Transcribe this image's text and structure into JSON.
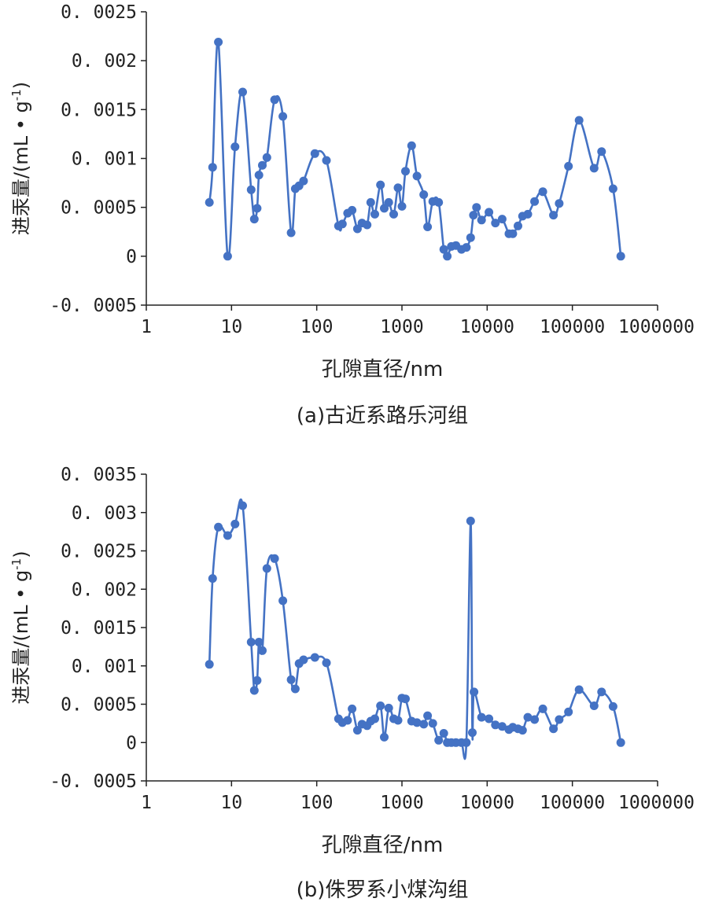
{
  "chart_data": [
    {
      "type": "line",
      "xlabel": "孔隙直径/nm",
      "ylabel": "进汞量/(mL • g",
      "ylabel_sup": "-1",
      "ylabel_close": ")",
      "caption": "(a)古近系路乐河组",
      "xscale": "log",
      "xlim": [
        1,
        1000000
      ],
      "ylim": [
        -0.0005,
        0.0025
      ],
      "xticks": [
        "1",
        "10",
        "100",
        "1000",
        "10000",
        "100000",
        "1000000"
      ],
      "yticks": [
        "0.0025",
        "0.002",
        "0.0015",
        "0.001",
        "0.0005",
        "0",
        "-0.0005"
      ],
      "color": "#4472C4",
      "x": [
        5.5,
        6,
        7,
        9,
        11,
        13.5,
        17,
        18.5,
        20,
        21,
        23,
        26,
        32,
        40,
        50,
        56,
        62,
        70,
        95,
        130,
        180,
        200,
        230,
        260,
        300,
        340,
        390,
        430,
        480,
        560,
        620,
        700,
        800,
        900,
        1000,
        1100,
        1300,
        1500,
        1800,
        2000,
        2300,
        2700,
        3100,
        3400,
        3800,
        4300,
        5000,
        5700,
        6400,
        6900,
        7500,
        8600,
        10500,
        12500,
        15000,
        18000,
        20000,
        23000,
        26000,
        30000,
        36000,
        45000,
        60000,
        70000,
        90000,
        120000,
        180000,
        220000,
        300000,
        370000
      ],
      "y": [
        0.00055,
        0.00091,
        0.00219,
        0.0,
        0.00112,
        0.00168,
        0.00068,
        0.00038,
        0.00049,
        0.00083,
        0.00093,
        0.00101,
        0.0016,
        0.00143,
        0.00024,
        0.00069,
        0.00072,
        0.00077,
        0.00105,
        0.00098,
        0.00031,
        0.00033,
        0.00044,
        0.00047,
        0.00028,
        0.00034,
        0.00032,
        0.00055,
        0.00043,
        0.00073,
        0.00049,
        0.00055,
        0.00043,
        0.0007,
        0.00051,
        0.00087,
        0.00113,
        0.00082,
        0.00063,
        0.0003,
        0.00056,
        0.00055,
        7e-05,
        0.0,
        0.0001,
        0.00011,
        7e-05,
        9e-05,
        0.00019,
        0.00042,
        0.0005,
        0.00037,
        0.00045,
        0.00034,
        0.00038,
        0.00023,
        0.00023,
        0.00031,
        0.00041,
        0.00043,
        0.00056,
        0.00066,
        0.00042,
        0.00054,
        0.00092,
        0.00139,
        0.0009,
        0.00107,
        0.00069,
        0.0
      ]
    },
    {
      "type": "line",
      "xlabel": "孔隙直径/nm",
      "ylabel": "进汞量/(mL • g",
      "ylabel_sup": "-1",
      "ylabel_close": ")",
      "caption": "(b)侏罗系小煤沟组",
      "xscale": "log",
      "xlim": [
        1,
        1000000
      ],
      "ylim": [
        -0.0005,
        0.0035
      ],
      "xticks": [
        "1",
        "10",
        "100",
        "1000",
        "10000",
        "100000",
        "1000000"
      ],
      "yticks": [
        "0.0035",
        "0.003",
        "0.0025",
        "0.002",
        "0.0015",
        "0.001",
        "0.0005",
        "0",
        "-0.0005"
      ],
      "color": "#4472C4",
      "x": [
        5.5,
        6,
        7,
        9,
        11,
        13.5,
        17,
        18.5,
        20,
        21,
        23,
        26,
        32,
        40,
        50,
        56,
        62,
        70,
        95,
        130,
        180,
        200,
        230,
        260,
        300,
        340,
        390,
        430,
        480,
        560,
        620,
        700,
        800,
        900,
        1000,
        1100,
        1300,
        1500,
        1800,
        2000,
        2300,
        2700,
        3100,
        3400,
        3800,
        4300,
        5000,
        5700,
        6400,
        6700,
        7000,
        8600,
        10500,
        12500,
        15000,
        18000,
        20000,
        23000,
        26000,
        30000,
        36000,
        45000,
        60000,
        70000,
        90000,
        120000,
        180000,
        220000,
        300000,
        370000
      ],
      "y": [
        0.00102,
        0.00214,
        0.00281,
        0.0027,
        0.00285,
        0.00309,
        0.00131,
        0.00068,
        0.00081,
        0.00131,
        0.0012,
        0.00227,
        0.0024,
        0.00185,
        0.00082,
        0.0007,
        0.00103,
        0.00108,
        0.00111,
        0.00104,
        0.00031,
        0.00026,
        0.00029,
        0.00044,
        0.00016,
        0.00024,
        0.00022,
        0.00028,
        0.00031,
        0.00048,
        7e-05,
        0.00045,
        0.00031,
        0.00029,
        0.00058,
        0.00057,
        0.00028,
        0.00026,
        0.00024,
        0.00035,
        0.00025,
        3e-05,
        0.00012,
        0.0,
        0.0,
        0.0,
        0.0,
        0.0,
        0.00289,
        0.00013,
        0.00066,
        0.00033,
        0.00031,
        0.00023,
        0.00021,
        0.00017,
        0.0002,
        0.00018,
        0.00016,
        0.00033,
        0.0003,
        0.00044,
        0.00018,
        0.0003,
        0.0004,
        0.00069,
        0.00048,
        0.00066,
        0.00047,
        0.0
      ]
    }
  ]
}
